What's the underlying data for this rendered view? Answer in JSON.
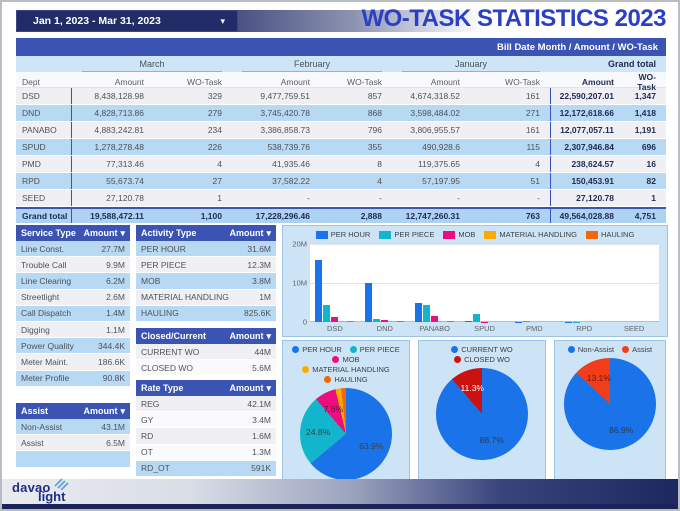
{
  "header": {
    "date_range": "Jan 1, 2023 - Mar 31, 2023",
    "title": "WO-TASK STATISTICS 2023"
  },
  "icons": {
    "dropdown_caret": "▾",
    "sort_caret": "▾"
  },
  "colors": {
    "accent_blue": "#3b54b4",
    "navy": "#222d67",
    "title_blue": "#2b3fc4",
    "row_blue": "#b7d9f3",
    "row_gray": "#f0f0f4",
    "chart_panel_bg": "#cde3f6"
  },
  "pivot_table": {
    "band_title": "Bill Date Month / Amount / WO-Task",
    "dept_header": "Dept",
    "months": [
      "March",
      "February",
      "January"
    ],
    "grand_total_label": "Grand total",
    "amount_header": "Amount",
    "wo_task_header": "WO-Task",
    "rows": [
      {
        "dept": "DSD",
        "values": [
          "8,438,128.98",
          "329",
          "9,477,759.51",
          "857",
          "4,674,318.52",
          "161",
          "22,590,207.01",
          "1,347"
        ]
      },
      {
        "dept": "DND",
        "values": [
          "4,828,713.86",
          "279",
          "3,745,420.78",
          "868",
          "3,598,484.02",
          "271",
          "12,172,618.66",
          "1,418"
        ]
      },
      {
        "dept": "PANABO",
        "values": [
          "4,883,242.81",
          "234",
          "3,386,858.73",
          "796",
          "3,806,955.57",
          "161",
          "12,077,057.11",
          "1,191"
        ]
      },
      {
        "dept": "SPUD",
        "values": [
          "1,278,278.48",
          "226",
          "538,739.76",
          "355",
          "490,928.6",
          "115",
          "2,307,946.84",
          "696"
        ]
      },
      {
        "dept": "PMD",
        "values": [
          "77,313.46",
          "4",
          "41,935.46",
          "8",
          "119,375.65",
          "4",
          "238,624.57",
          "16"
        ]
      },
      {
        "dept": "RPD",
        "values": [
          "55,673.74",
          "27",
          "37,582.22",
          "4",
          "57,197.95",
          "51",
          "150,453.91",
          "82"
        ]
      },
      {
        "dept": "SEED",
        "values": [
          "27,120.78",
          "1",
          "-",
          "-",
          "-",
          "-",
          "27,120.78",
          "1"
        ]
      }
    ],
    "grand_total_row": {
      "dept": "Grand total",
      "values": [
        "19,588,472.11",
        "1,100",
        "17,228,296.46",
        "2,888",
        "12,747,260.31",
        "763",
        "49,564,028.88",
        "4,751"
      ]
    }
  },
  "panels": [
    {
      "id": "service-type",
      "title": "Service Type",
      "value_header": "Amount",
      "shades": [
        "blue",
        "gray",
        "blue",
        "gray",
        "blue",
        "gray",
        "blue",
        "gray",
        "blue"
      ],
      "rows": [
        [
          "Line Const.",
          "27.7M"
        ],
        [
          "Trouble Call",
          "9.9M"
        ],
        [
          "Line Clearing",
          "6.2M"
        ],
        [
          "Streetlight",
          "2.6M"
        ],
        [
          "Call Dispatch",
          "1.4M"
        ],
        [
          "Digging",
          "1.1M"
        ],
        [
          "Power Quality",
          "344.4K"
        ],
        [
          "Meter Maint.",
          "186.6K"
        ],
        [
          "Meter Profile",
          "90.8K"
        ]
      ]
    },
    {
      "id": "assist",
      "title": "Assist",
      "value_header": "Amount",
      "shades": [
        "blue",
        "gray",
        "blue"
      ],
      "rows": [
        [
          "Non-Assist",
          "43.1M"
        ],
        [
          "Assist",
          "6.5M"
        ]
      ]
    },
    {
      "id": "activity-type",
      "title": "Activity Type",
      "value_header": "Amount",
      "shades": [
        "blue",
        "gray",
        "blue",
        "gray",
        "blue"
      ],
      "rows": [
        [
          "PER HOUR",
          "31.6M"
        ],
        [
          "PER PIECE",
          "12.3M"
        ],
        [
          "MOB",
          "3.8M"
        ],
        [
          "MATERIAL HANDLING",
          "1M"
        ],
        [
          "HAULING",
          "825.6K"
        ]
      ]
    },
    {
      "id": "closed-current",
      "title": "Closed/Current",
      "value_header": "Amount",
      "shades": [
        "gray",
        "white"
      ],
      "rows": [
        [
          "CURRENT WO",
          "44M"
        ],
        [
          "CLOSED WO",
          "5.6M"
        ]
      ]
    },
    {
      "id": "rate-type",
      "title": "Rate Type",
      "value_header": "Amount",
      "shades": [
        "gray",
        "white",
        "gray",
        "white",
        "blue"
      ],
      "rows": [
        [
          "REG",
          "42.1M"
        ],
        [
          "GY",
          "3.4M"
        ],
        [
          "RD",
          "1.6M"
        ],
        [
          "OT",
          "1.3M"
        ],
        [
          "RD_OT",
          "591K"
        ]
      ]
    }
  ],
  "chart_data": [
    {
      "type": "bar",
      "categories": [
        "DSD",
        "DND",
        "PANABO",
        "SPUD",
        "PMD",
        "RPD",
        "SEED"
      ],
      "series": [
        {
          "name": "PER HOUR",
          "color": "#1a73e8",
          "values": [
            15.8,
            9.9,
            4.9,
            0.2,
            0.05,
            0.05,
            0.02
          ]
        },
        {
          "name": "PER PIECE",
          "color": "#12b5cb",
          "values": [
            4.3,
            0.7,
            4.4,
            2.1,
            0.15,
            0.08,
            0.01
          ]
        },
        {
          "name": "MOB",
          "color": "#ec0e7e",
          "values": [
            1.2,
            0.6,
            1.5,
            0.05,
            0.01,
            0.01,
            0
          ]
        },
        {
          "name": "MATERIAL HANDLING",
          "color": "#f9ab00",
          "values": [
            0.35,
            0.15,
            0.2,
            0.02,
            0.01,
            0,
            0
          ]
        },
        {
          "name": "HAULING",
          "color": "#f4650c",
          "values": [
            0.3,
            0.35,
            0.35,
            0.02,
            0.01,
            0.01,
            0
          ]
        }
      ],
      "unit": "M",
      "ylim": [
        0,
        20
      ],
      "yticks": [
        "20M",
        "10M",
        "0"
      ],
      "legend_position": "top",
      "grid": true
    },
    {
      "type": "pie",
      "slices": [
        {
          "name": "PER HOUR",
          "pct": 63.9,
          "label": "63.9%",
          "color": "#1a73e8",
          "label_color": "#3a3f47"
        },
        {
          "name": "PER PIECE",
          "pct": 24.8,
          "label": "24.8%",
          "color": "#12b5cb",
          "label_color": "#3a3f47"
        },
        {
          "name": "MOB",
          "pct": 7.6,
          "label": "7.6%",
          "color": "#ec0e7e",
          "label_color": "#4a2036"
        },
        {
          "name": "MATERIAL HANDLING",
          "pct": 2.0,
          "label": "",
          "color": "#f9ab00",
          "label_color": "#3a3f47"
        },
        {
          "name": "HAULING",
          "pct": 1.7,
          "label": "",
          "color": "#f4650c",
          "label_color": "#3a3f47"
        }
      ]
    },
    {
      "type": "pie",
      "slices": [
        {
          "name": "CURRENT WO",
          "pct": 88.7,
          "label": "88.7%",
          "color": "#1a73e8",
          "label_color": "#2d3a55"
        },
        {
          "name": "CLOSED WO",
          "pct": 11.3,
          "label": "11.3%",
          "color": "#cc1210",
          "label_color": "#ffffff"
        }
      ]
    },
    {
      "type": "pie",
      "slices": [
        {
          "name": "Non-Assist",
          "pct": 86.9,
          "label": "86.9%",
          "color": "#1a73e8",
          "label_color": "#2d3a55"
        },
        {
          "name": "Assist",
          "pct": 13.1,
          "label": "13.1%",
          "color": "#f23d1a",
          "label_color": "#5a2019"
        }
      ]
    }
  ],
  "footer": {
    "logo_top": "davao",
    "logo_bottom": "light"
  }
}
